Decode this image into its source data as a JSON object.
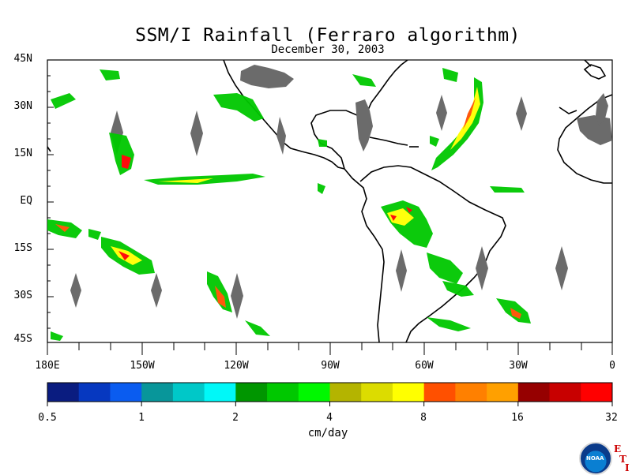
{
  "title": "SSM/I Rainfall (Ferraro algorithm)",
  "subtitle": "December 30, 2003",
  "latitude_labels": [
    "45N",
    "30N",
    "15N",
    "EQ",
    "15S",
    "30S",
    "45S"
  ],
  "longitude_labels": [
    "180E",
    "150W",
    "120W",
    "90W",
    "60W",
    "30W",
    "0"
  ],
  "colorbar": {
    "colors": [
      "#0a1c80",
      "#0638c0",
      "#0a5cf0",
      "#08969a",
      "#00c8c8",
      "#00f8f8",
      "#009600",
      "#00c800",
      "#00f800",
      "#b4b400",
      "#dcdc00",
      "#ffff00",
      "#ff5000",
      "#ff8000",
      "#ffa000",
      "#960000",
      "#c80000",
      "#ff0000"
    ],
    "tick_labels": [
      "0.5",
      "1",
      "2",
      "4",
      "8",
      "16",
      "32"
    ],
    "units": "cm/day"
  },
  "logo": {
    "agency": "NOAA",
    "mark_letters": [
      "E",
      "T",
      "I"
    ]
  }
}
